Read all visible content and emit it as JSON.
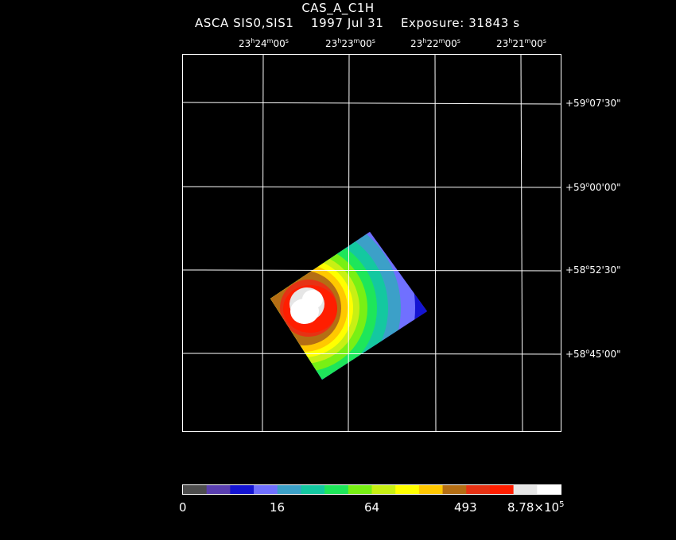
{
  "header": {
    "title": "CAS_A_C1H",
    "instrument": "ASCA SIS0,SIS1",
    "date": "1997 Jul 31",
    "exposure": "Exposure: 31843 s"
  },
  "ra_ticks": [
    {
      "h": "23",
      "m": "24",
      "s": "00"
    },
    {
      "h": "23",
      "m": "23",
      "s": "00"
    },
    {
      "h": "23",
      "m": "22",
      "s": "00"
    },
    {
      "h": "23",
      "m": "21",
      "s": "00"
    }
  ],
  "dec_ticks": [
    {
      "d": "+59",
      "m": "07",
      "s": "30"
    },
    {
      "d": "+59",
      "m": "00",
      "s": "00"
    },
    {
      "d": "+58",
      "m": "52",
      "s": "30"
    },
    {
      "d": "+58",
      "m": "45",
      "s": "00"
    }
  ],
  "colorbar": {
    "labels": [
      "0",
      "16",
      "64",
      "493",
      "8.78×10"
    ],
    "exponent": "5",
    "colors": [
      "#4d4d4d",
      "#5a3fb0",
      "#1414d2",
      "#7070ff",
      "#3ca0c8",
      "#14c8a0",
      "#1ee65a",
      "#78f014",
      "#c8f014",
      "#ffff00",
      "#ffc800",
      "#b46e14",
      "#e63214",
      "#ff1e00",
      "#e6e6e6",
      "#ffffff"
    ]
  }
}
